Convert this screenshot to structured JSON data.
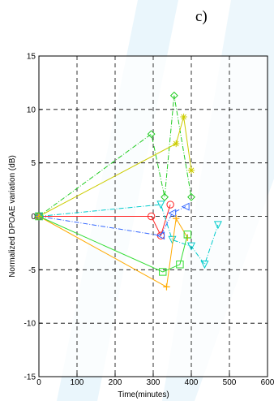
{
  "panel_label": "c)",
  "chart_data": {
    "type": "line",
    "title": "",
    "xlabel": "Time(minutes)",
    "ylabel": "Normalized DPOAE variation (dB)",
    "xlim": [
      0,
      600
    ],
    "ylim": [
      -15,
      15
    ],
    "xticks": [
      0,
      100,
      200,
      300,
      400,
      500,
      600
    ],
    "yticks": [
      -15,
      -10,
      -5,
      0,
      5,
      10,
      15
    ],
    "grid": true,
    "legend": "none",
    "series": [
      {
        "color": "#22cc22",
        "dash": "6,2,1,2",
        "marker": "diamond",
        "x": [
          0,
          295,
          330,
          355,
          400
        ],
        "y": [
          0,
          7.7,
          1.8,
          11.3,
          1.8
        ]
      },
      {
        "color": "#cccc00",
        "dash": "none",
        "marker": "star",
        "x": [
          0,
          360,
          380,
          400
        ],
        "y": [
          0,
          6.8,
          9.3,
          4.3
        ]
      },
      {
        "color": "#ff2222",
        "dash": "none",
        "marker": "circle",
        "x": [
          0,
          295,
          320,
          345
        ],
        "y": [
          0,
          0,
          -1.8,
          1.1
        ]
      },
      {
        "color": "#00cccc",
        "dash": "6,2,1,2",
        "marker": "triangle-down",
        "x": [
          0,
          320,
          350,
          400,
          435,
          470
        ],
        "y": [
          0,
          1.1,
          -2.2,
          -2.8,
          -4.5,
          -0.8
        ]
      },
      {
        "color": "#3366ff",
        "dash": "6,2,1,2",
        "marker": "triangle-left",
        "x": [
          0,
          320,
          350,
          385
        ],
        "y": [
          0,
          -1.8,
          0.3,
          0.9
        ]
      },
      {
        "color": "#ffaa00",
        "dash": "none",
        "marker": "plus",
        "x": [
          0,
          335,
          360,
          390
        ],
        "y": [
          0,
          -6.6,
          -0.2,
          -2
        ]
      },
      {
        "color": "#33dd33",
        "dash": "none",
        "marker": "square",
        "x": [
          0,
          325,
          370,
          390
        ],
        "y": [
          0,
          -5.2,
          -4.5,
          -1.7
        ]
      }
    ]
  }
}
